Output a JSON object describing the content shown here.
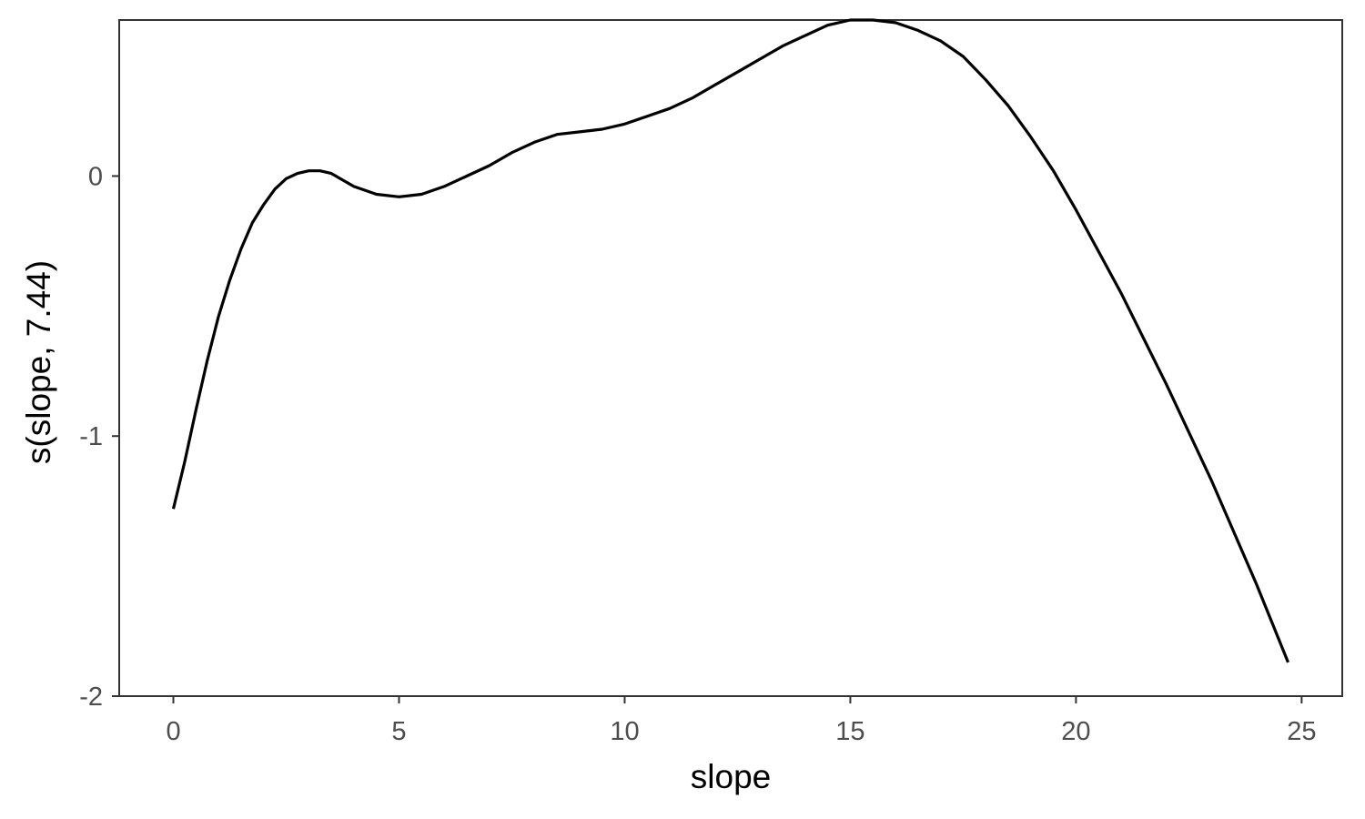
{
  "chart_data": {
    "type": "line",
    "title": "",
    "xlabel": "slope",
    "ylabel": "s(slope, 7.44)",
    "xlim": [
      -1.2,
      25.9
    ],
    "ylim": [
      -2.0,
      0.6
    ],
    "x_ticks": [
      0,
      5,
      10,
      15,
      20,
      25
    ],
    "y_ticks": [
      -2,
      -1,
      0
    ],
    "x_tick_labels": [
      "0",
      "5",
      "10",
      "15",
      "20",
      "25"
    ],
    "y_tick_labels": [
      "-2",
      "-1",
      "0"
    ],
    "grid": false,
    "legend": false,
    "line_color": "#000000",
    "series": [
      {
        "x": [
          0,
          0.25,
          0.5,
          0.75,
          1,
          1.25,
          1.5,
          1.75,
          2,
          2.25,
          2.5,
          2.75,
          3,
          3.25,
          3.5,
          4,
          4.5,
          5,
          5.5,
          6,
          6.5,
          7,
          7.5,
          8,
          8.5,
          9,
          9.5,
          10,
          10.5,
          11,
          11.5,
          12,
          12.5,
          13,
          13.5,
          14,
          14.5,
          15,
          15.5,
          16,
          16.5,
          17,
          17.5,
          18,
          18.5,
          19,
          19.5,
          20,
          21,
          22,
          23,
          24,
          24.7
        ],
        "y": [
          -1.28,
          -1.1,
          -0.9,
          -0.71,
          -0.54,
          -0.4,
          -0.28,
          -0.18,
          -0.11,
          -0.05,
          -0.01,
          0.01,
          0.02,
          0.02,
          0.01,
          -0.04,
          -0.07,
          -0.08,
          -0.07,
          -0.04,
          0.0,
          0.04,
          0.09,
          0.13,
          0.16,
          0.17,
          0.18,
          0.2,
          0.23,
          0.26,
          0.3,
          0.35,
          0.4,
          0.45,
          0.5,
          0.54,
          0.58,
          0.6,
          0.6,
          0.59,
          0.56,
          0.52,
          0.46,
          0.37,
          0.27,
          0.15,
          0.02,
          -0.13,
          -0.45,
          -0.8,
          -1.17,
          -1.57,
          -1.87
        ]
      }
    ]
  }
}
